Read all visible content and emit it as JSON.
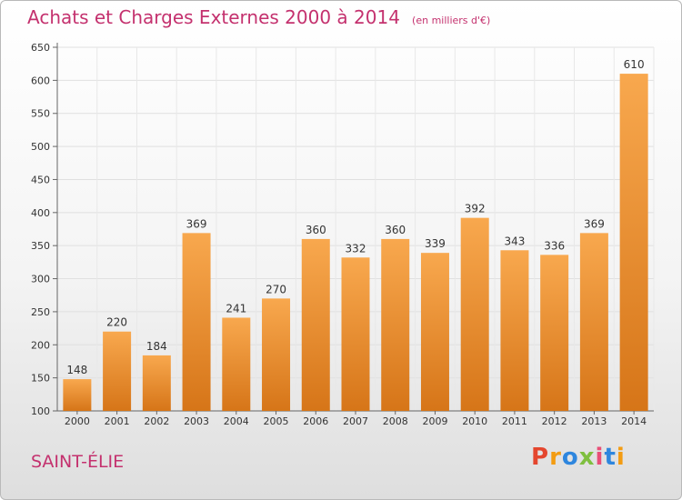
{
  "header": {
    "title": "Achats et Charges Externes 2000 à 2014",
    "unit": "(en milliers d'€)"
  },
  "footer": {
    "commune": "SAINT-ÉLIE",
    "brand": "Proxiti"
  },
  "colors": {
    "accent": "#c4316e",
    "bar_light": "#f8a84e",
    "bar_dark": "#d67518",
    "brand_letters": [
      "#e4462e",
      "#f39c12",
      "#2e86de",
      "#7fbf3f",
      "#e94e77",
      "#2e86de",
      "#f39c12"
    ]
  },
  "chart_data": {
    "type": "bar",
    "title": "Achats et Charges Externes 2000 à 2014",
    "subtitle": "(en milliers d'€)",
    "categories": [
      "2000",
      "2001",
      "2002",
      "2003",
      "2004",
      "2005",
      "2006",
      "2007",
      "2008",
      "2009",
      "2010",
      "2011",
      "2012",
      "2013",
      "2014"
    ],
    "values": [
      148,
      220,
      184,
      369,
      241,
      270,
      360,
      332,
      360,
      339,
      392,
      343,
      336,
      369,
      610
    ],
    "ylim": [
      100,
      650
    ],
    "yticks": [
      100,
      150,
      200,
      250,
      300,
      350,
      400,
      450,
      500,
      550,
      600,
      650
    ],
    "grid": true,
    "data_labels": true
  }
}
